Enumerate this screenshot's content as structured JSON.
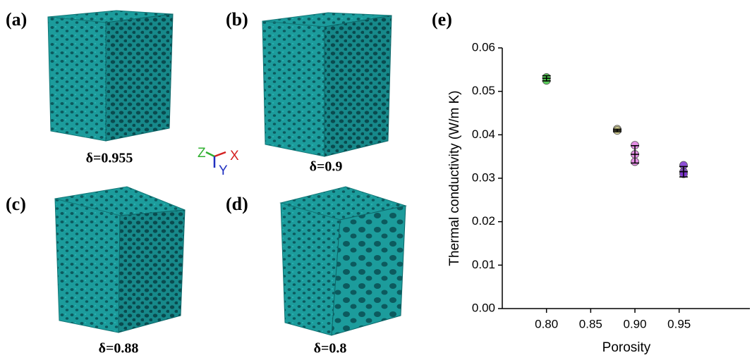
{
  "panels": [
    {
      "label": "(a)",
      "caption": "δ=0.955"
    },
    {
      "label": "(b)",
      "caption": "δ=0.9"
    },
    {
      "label": "(c)",
      "caption": "δ=0.88"
    },
    {
      "label": "(d)",
      "caption": "δ=0.8"
    }
  ],
  "axes_triad": {
    "x": "X",
    "y": "Y",
    "z": "Z"
  },
  "chart_data": {
    "type": "scatter",
    "label": "(e)",
    "x_label": "Porosity",
    "y_label": "Thermal conductivity (W/m K)",
    "xlim": [
      0.75,
      1.03
    ],
    "ylim": [
      0,
      0.06
    ],
    "xticks": [
      {
        "value": 0.8,
        "label": "0.80"
      },
      {
        "value": 0.85,
        "label": "0.85"
      },
      {
        "value": 0.9,
        "label": "0.90"
      },
      {
        "value": 0.95,
        "label": "0.95"
      }
    ],
    "yticks": [
      {
        "value": 0,
        "label": "0.00"
      },
      {
        "value": 0.01,
        "label": "0.01"
      },
      {
        "value": 0.02,
        "label": "0.02"
      },
      {
        "value": 0.03,
        "label": "0.03"
      },
      {
        "value": 0.04,
        "label": "0.04"
      },
      {
        "value": 0.05,
        "label": "0.05"
      },
      {
        "value": 0.06,
        "label": "0.06"
      }
    ],
    "series": [
      {
        "color": "#3ec93e",
        "x": [
          0.8,
          0.8
        ],
        "values": [
          0.0525,
          0.0532
        ],
        "mean_x": 0.8,
        "mean": 0.053,
        "error": 0.0006
      },
      {
        "color": "#d9d38f",
        "x": [
          0.88,
          0.88
        ],
        "values": [
          0.0413,
          0.041
        ],
        "mean_x": 0.88,
        "mean": 0.041,
        "error": 0.0003
      },
      {
        "color": "#e07be0",
        "x": [
          0.9,
          0.9,
          0.9
        ],
        "values": [
          0.0376,
          0.0355,
          0.0338
        ],
        "mean_x": 0.9,
        "mean": 0.0355,
        "error": 0.002
      },
      {
        "color": "#7a2fd0",
        "x": [
          0.955,
          0.955,
          0.955
        ],
        "values": [
          0.033,
          0.0315,
          0.031
        ],
        "mean_x": 0.955,
        "mean": 0.0315,
        "error": 0.0012
      }
    ]
  }
}
